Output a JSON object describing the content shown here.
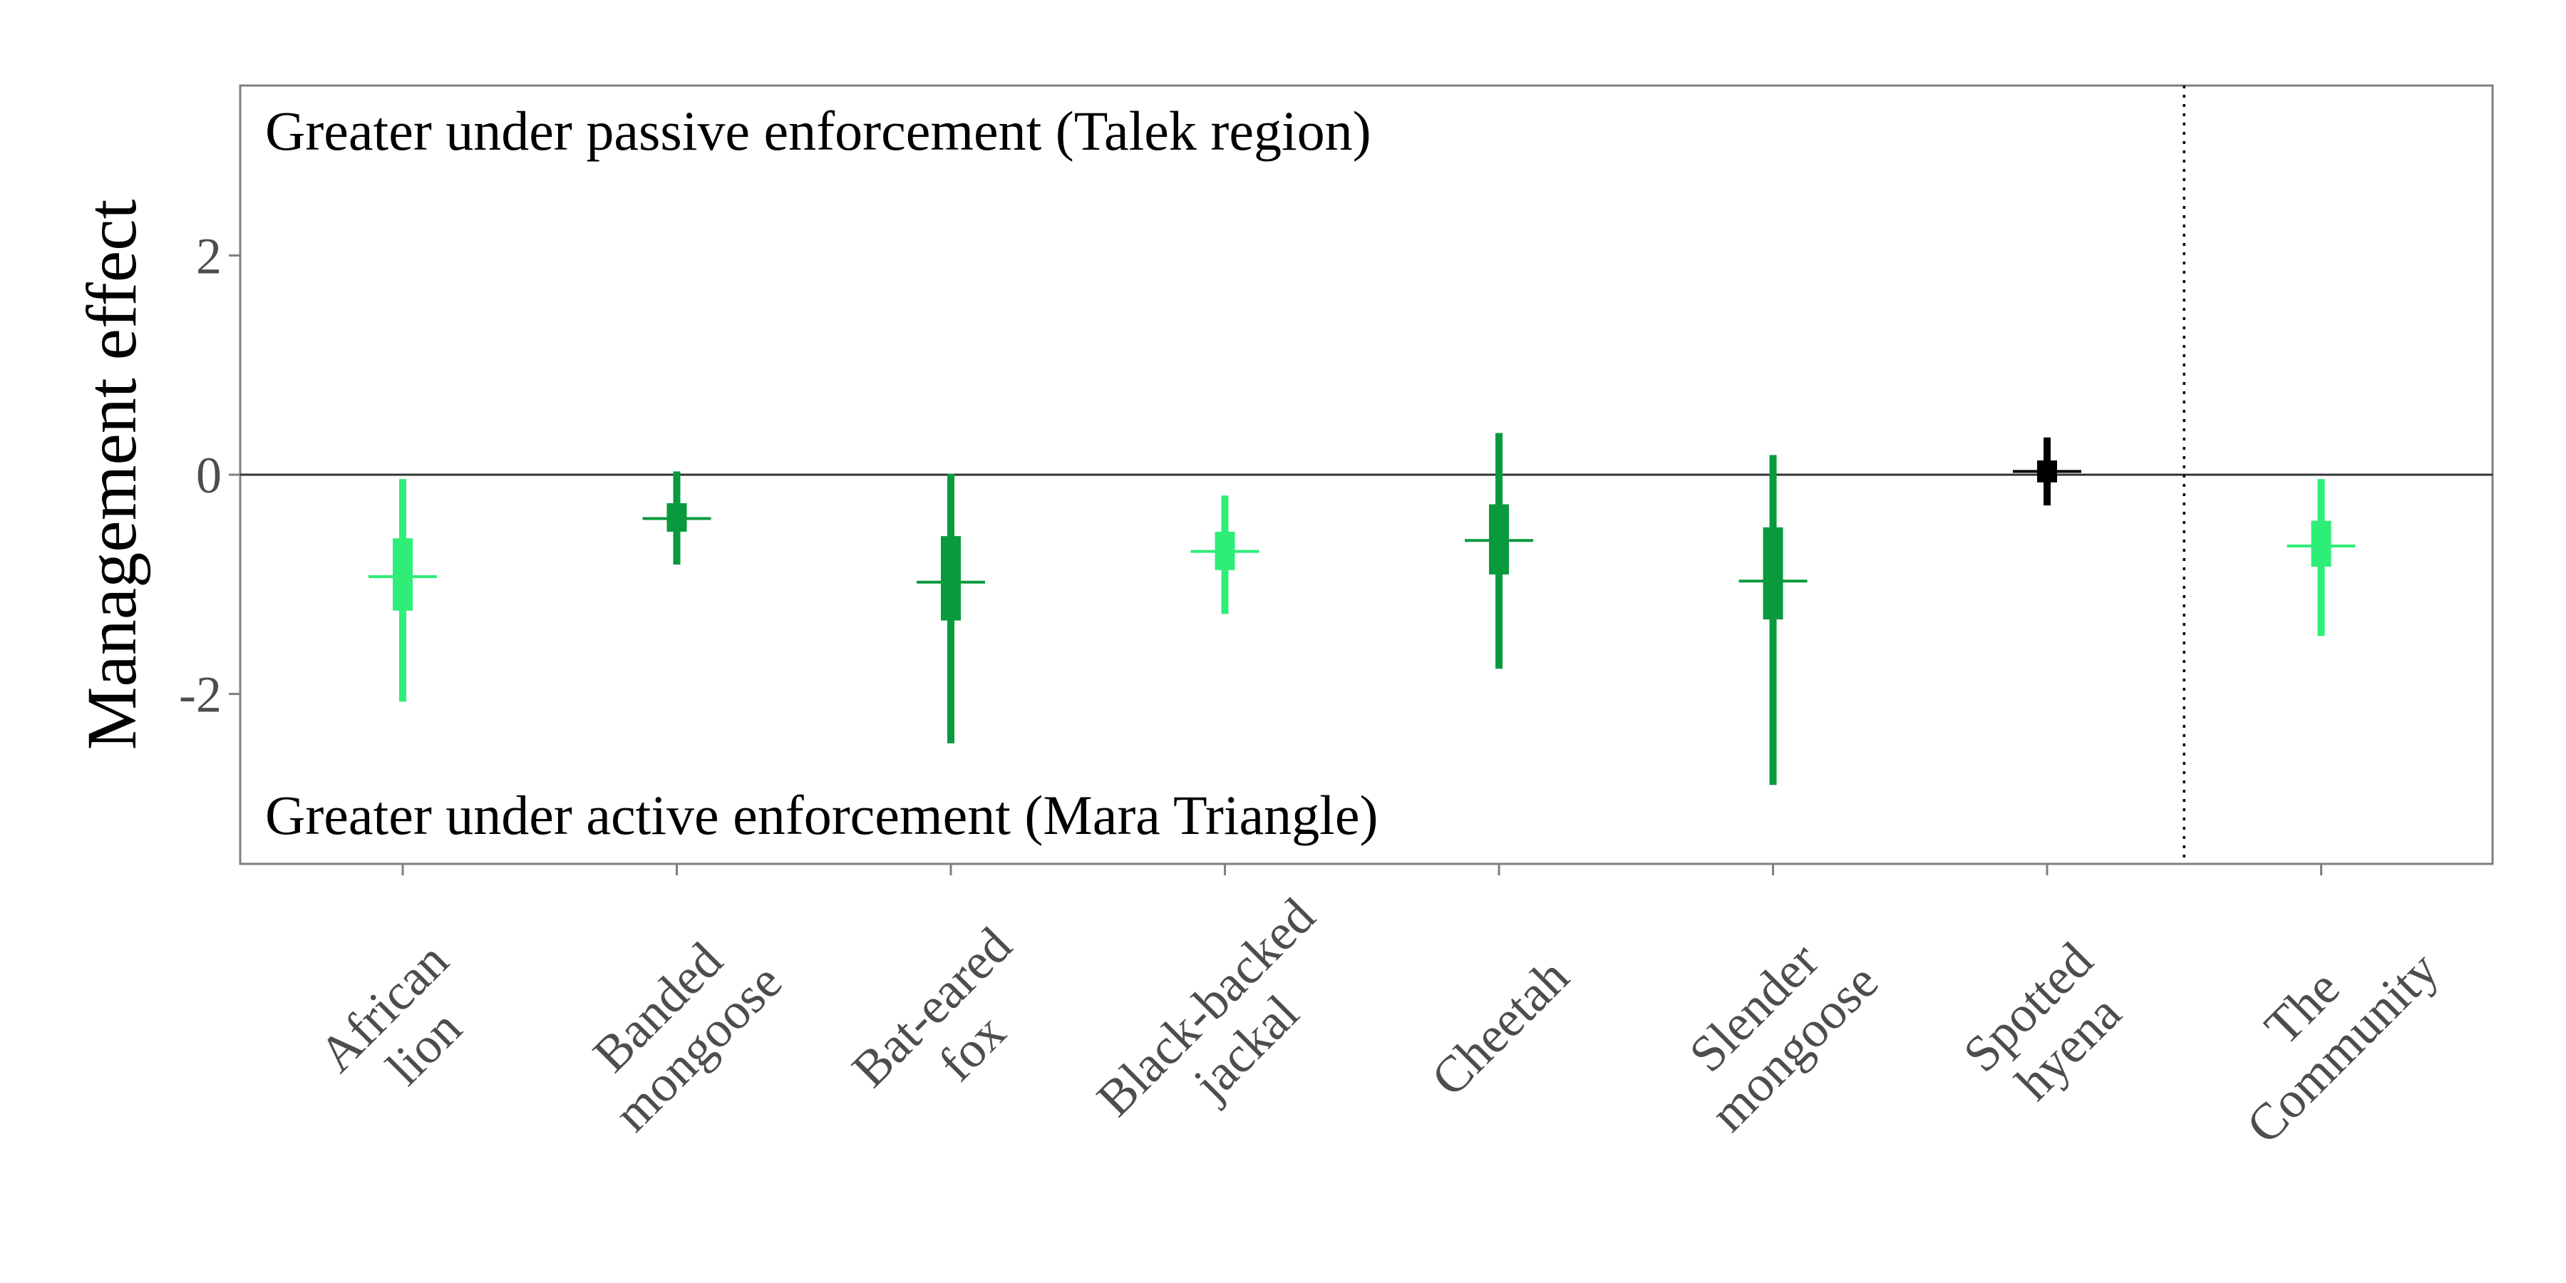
{
  "chart_data": {
    "type": "errorbar",
    "ylabel": "Management effect",
    "xlabel": "",
    "ylim": [
      -3.55,
      3.55
    ],
    "yticks": [
      -2,
      0,
      2
    ],
    "ytick_labels": [
      "-2",
      "0",
      "2"
    ],
    "categories": [
      [
        "African",
        "lion"
      ],
      [
        "Banded",
        "mongoose"
      ],
      [
        "Bat-eared",
        "fox"
      ],
      [
        "Black-backed",
        "jackal"
      ],
      [
        "Cheetah"
      ],
      [
        "Slender",
        "mongoose"
      ],
      [
        "Spotted",
        "hyena"
      ],
      [
        "The",
        "Community"
      ]
    ],
    "annotations": {
      "top": "Greater under passive enforcement (Talek region)",
      "bottom": "Greater under active enforcement (Mara Triangle)"
    },
    "reference_line_y": 0,
    "separator_after_index": 6,
    "grid": false,
    "colors": {
      "light_green": "#2EEE78",
      "dark_green": "#0A9A3E",
      "black": "#000000",
      "axis": "#7f7f7f",
      "zero_line": "#333333"
    },
    "points": [
      {
        "median": -0.93,
        "inner_lo": -1.24,
        "inner_hi": -0.58,
        "outer_lo": -2.07,
        "outer_hi": -0.04,
        "color": "light_green"
      },
      {
        "median": -0.4,
        "inner_lo": -0.52,
        "inner_hi": -0.26,
        "outer_lo": -0.82,
        "outer_hi": 0.03,
        "color": "dark_green"
      },
      {
        "median": -0.98,
        "inner_lo": -1.33,
        "inner_hi": -0.56,
        "outer_lo": -2.45,
        "outer_hi": 0.01,
        "color": "dark_green"
      },
      {
        "median": -0.7,
        "inner_lo": -0.87,
        "inner_hi": -0.52,
        "outer_lo": -1.27,
        "outer_hi": -0.19,
        "color": "light_green"
      },
      {
        "median": -0.6,
        "inner_lo": -0.91,
        "inner_hi": -0.27,
        "outer_lo": -1.77,
        "outer_hi": 0.38,
        "color": "dark_green"
      },
      {
        "median": -0.97,
        "inner_lo": -1.32,
        "inner_hi": -0.48,
        "outer_lo": -2.83,
        "outer_hi": 0.18,
        "color": "dark_green"
      },
      {
        "median": 0.03,
        "inner_lo": -0.07,
        "inner_hi": 0.13,
        "outer_lo": -0.28,
        "outer_hi": 0.34,
        "color": "black"
      },
      {
        "median": -0.65,
        "inner_lo": -0.84,
        "inner_hi": -0.42,
        "outer_lo": -1.47,
        "outer_hi": -0.04,
        "color": "light_green"
      }
    ]
  }
}
